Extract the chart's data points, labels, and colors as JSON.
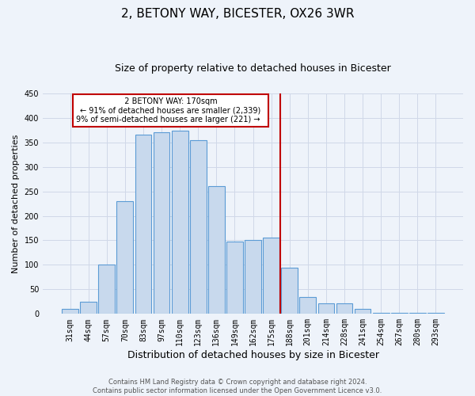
{
  "title": "2, BETONY WAY, BICESTER, OX26 3WR",
  "subtitle": "Size of property relative to detached houses in Bicester",
  "xlabel": "Distribution of detached houses by size in Bicester",
  "ylabel": "Number of detached properties",
  "bar_labels": [
    "31sqm",
    "44sqm",
    "57sqm",
    "70sqm",
    "83sqm",
    "97sqm",
    "110sqm",
    "123sqm",
    "136sqm",
    "149sqm",
    "162sqm",
    "175sqm",
    "188sqm",
    "201sqm",
    "214sqm",
    "228sqm",
    "241sqm",
    "254sqm",
    "267sqm",
    "280sqm",
    "293sqm"
  ],
  "bar_values": [
    10,
    25,
    100,
    230,
    365,
    370,
    373,
    355,
    260,
    148,
    150,
    155,
    95,
    35,
    22,
    22,
    10,
    2,
    2,
    2,
    2
  ],
  "bar_color": "#c8d9ed",
  "bar_edge_color": "#5b9bd5",
  "grid_color": "#d0d8e8",
  "background_color": "#eef3fa",
  "ylim": [
    0,
    450
  ],
  "yticks": [
    0,
    50,
    100,
    150,
    200,
    250,
    300,
    350,
    400,
    450
  ],
  "vline_color": "#c00000",
  "annotation_title": "2 BETONY WAY: 170sqm",
  "annotation_line1": "← 91% of detached houses are smaller (2,339)",
  "annotation_line2": "9% of semi-detached houses are larger (221) →",
  "annotation_box_color": "#ffffff",
  "annotation_box_edge": "#c00000",
  "footer_line1": "Contains HM Land Registry data © Crown copyright and database right 2024.",
  "footer_line2": "Contains public sector information licensed under the Open Government Licence v3.0.",
  "title_fontsize": 11,
  "subtitle_fontsize": 9,
  "xlabel_fontsize": 9,
  "ylabel_fontsize": 8,
  "tick_fontsize": 7,
  "footer_fontsize": 6
}
